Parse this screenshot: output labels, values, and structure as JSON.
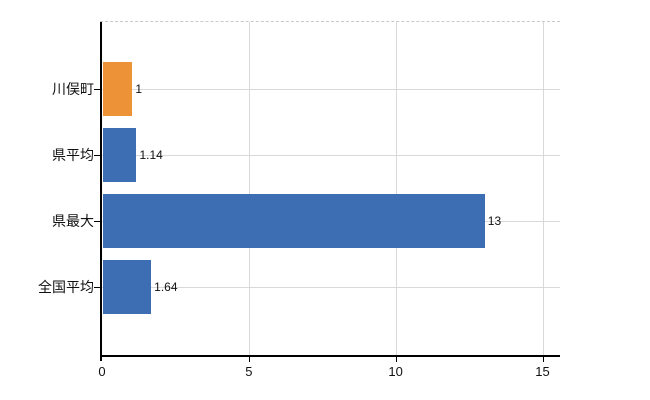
{
  "chart_data": {
    "type": "bar",
    "orientation": "horizontal",
    "title": "",
    "xlabel": "",
    "ylabel": "",
    "categories": [
      "川俣町",
      "県平均",
      "県最大",
      "全国平均"
    ],
    "values": [
      1,
      1.14,
      13,
      1.64
    ],
    "value_labels": [
      "1",
      "1.14",
      "13",
      "1.64"
    ],
    "bar_colors": [
      "#EE9237",
      "#3D6DB3",
      "#3D6DB3",
      "#3D6DB3"
    ],
    "xlim": [
      0,
      15
    ],
    "xticks": [
      "0",
      "5",
      "10",
      "15"
    ],
    "grid": true,
    "legend": "none"
  },
  "colors": {
    "bar_orange": "#EE9237",
    "bar_blue": "#3D6DB3",
    "gridline": "#d9d9d9",
    "plot_border_dashed": "#c9c9c9",
    "axis": "#000000",
    "text": "#111111",
    "background": "#ffffff"
  }
}
